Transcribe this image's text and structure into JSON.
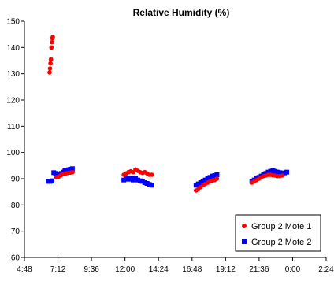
{
  "chart_data": {
    "type": "scatter",
    "title": "Relative Humidity (%)",
    "xlabel": "",
    "ylabel": "",
    "x_unit": "time of day (h:mm), axis spans 4:48 to 2:24 next day",
    "ylim": [
      60,
      150
    ],
    "y_ticks": [
      60,
      70,
      80,
      90,
      100,
      110,
      120,
      130,
      140,
      150
    ],
    "x_ticks": [
      "4:48",
      "7:12",
      "9:36",
      "12:00",
      "14:24",
      "16:48",
      "19:12",
      "21:36",
      "0:00",
      "2:24"
    ],
    "grid": false,
    "legend_position": "bottom-right",
    "series": [
      {
        "name": "Group 2 Mote 1",
        "color": "#ff0000",
        "marker": "circle",
        "points": [
          [
            "6:36",
            130.5
          ],
          [
            "6:38",
            132
          ],
          [
            "6:40",
            134
          ],
          [
            "6:42",
            135.5
          ],
          [
            "6:44",
            140
          ],
          [
            "6:46",
            142
          ],
          [
            "6:48",
            143.5
          ],
          [
            "6:50",
            144
          ],
          [
            "7:05",
            90.5
          ],
          [
            "7:15",
            90.8
          ],
          [
            "7:25",
            91.3
          ],
          [
            "7:35",
            91.8
          ],
          [
            "7:45",
            92
          ],
          [
            "7:55",
            92.2
          ],
          [
            "8:05",
            92.3
          ],
          [
            "8:15",
            92.5
          ],
          [
            "11:55",
            91.5
          ],
          [
            "12:05",
            92
          ],
          [
            "12:15",
            92.5
          ],
          [
            "12:25",
            92.8
          ],
          [
            "12:35",
            92.5
          ],
          [
            "12:45",
            93.5
          ],
          [
            "12:55",
            93
          ],
          [
            "13:05",
            92.5
          ],
          [
            "13:15",
            92.2
          ],
          [
            "13:25",
            92.5
          ],
          [
            "13:35",
            92
          ],
          [
            "13:45",
            91.5
          ],
          [
            "13:55",
            91.5
          ],
          [
            "17:05",
            85.5
          ],
          [
            "17:15",
            86
          ],
          [
            "17:25",
            86.8
          ],
          [
            "17:35",
            87.5
          ],
          [
            "17:45",
            88
          ],
          [
            "17:55",
            88.5
          ],
          [
            "18:05",
            89
          ],
          [
            "18:15",
            89.2
          ],
          [
            "18:25",
            89.5
          ],
          [
            "18:35",
            90
          ],
          [
            "21:05",
            88.5
          ],
          [
            "21:15",
            89
          ],
          [
            "21:25",
            89.5
          ],
          [
            "21:35",
            90
          ],
          [
            "21:45",
            90.5
          ],
          [
            "21:55",
            91
          ],
          [
            "22:05",
            91.2
          ],
          [
            "22:15",
            91.5
          ],
          [
            "22:25",
            91.5
          ],
          [
            "22:35",
            91.3
          ],
          [
            "22:45",
            91.2
          ],
          [
            "22:55",
            91
          ],
          [
            "23:05",
            91
          ],
          [
            "23:15",
            91.2
          ]
        ]
      },
      {
        "name": "Group 2 Mote 2",
        "color": "#0000ff",
        "marker": "square",
        "points": [
          [
            "6:30",
            89
          ],
          [
            "6:38",
            89
          ],
          [
            "6:46",
            89.2
          ],
          [
            "6:54",
            92.3
          ],
          [
            "7:02",
            92
          ],
          [
            "7:10",
            91.5
          ],
          [
            "7:18",
            91.5
          ],
          [
            "7:26",
            92
          ],
          [
            "7:34",
            92.5
          ],
          [
            "7:42",
            93
          ],
          [
            "7:50",
            93.2
          ],
          [
            "7:58",
            93.4
          ],
          [
            "8:06",
            93.6
          ],
          [
            "8:14",
            93.8
          ],
          [
            "11:55",
            89.5
          ],
          [
            "12:05",
            90
          ],
          [
            "12:15",
            89.8
          ],
          [
            "12:25",
            90
          ],
          [
            "12:35",
            89.5
          ],
          [
            "12:45",
            90
          ],
          [
            "12:55",
            89.5
          ],
          [
            "13:05",
            89.2
          ],
          [
            "13:15",
            89
          ],
          [
            "13:25",
            88.5
          ],
          [
            "13:35",
            88.2
          ],
          [
            "13:45",
            87.8
          ],
          [
            "13:55",
            87.5
          ],
          [
            "17:05",
            87.5
          ],
          [
            "17:15",
            88
          ],
          [
            "17:25",
            88.5
          ],
          [
            "17:35",
            89
          ],
          [
            "17:45",
            89.5
          ],
          [
            "17:55",
            90
          ],
          [
            "18:05",
            90.5
          ],
          [
            "18:15",
            91
          ],
          [
            "18:25",
            91.2
          ],
          [
            "18:35",
            91.5
          ],
          [
            "21:05",
            89
          ],
          [
            "21:15",
            89.5
          ],
          [
            "21:25",
            90
          ],
          [
            "21:35",
            90.5
          ],
          [
            "21:45",
            91
          ],
          [
            "21:55",
            91.5
          ],
          [
            "22:05",
            92
          ],
          [
            "22:15",
            92.5
          ],
          [
            "22:25",
            92.8
          ],
          [
            "22:35",
            93
          ],
          [
            "22:45",
            92.8
          ],
          [
            "22:55",
            92.5
          ],
          [
            "23:05",
            92.3
          ],
          [
            "23:15",
            92
          ],
          [
            "23:25",
            92.2
          ],
          [
            "23:35",
            92.5
          ]
        ]
      }
    ]
  }
}
